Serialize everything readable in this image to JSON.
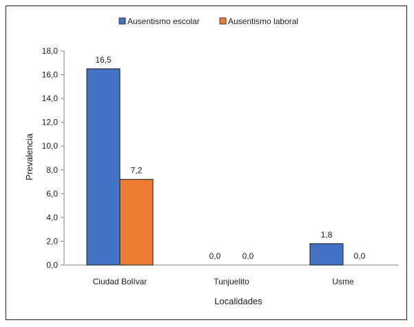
{
  "chart_data": {
    "type": "bar",
    "categories": [
      "Ciudad Bolívar",
      "Tunjuelito",
      "Usme"
    ],
    "series": [
      {
        "name": "Ausentismo escolar",
        "values": [
          16.5,
          0.0,
          1.8
        ],
        "labels": [
          "16,5",
          "0,0",
          "1,8"
        ],
        "color": "#4472C4"
      },
      {
        "name": "Ausentismo laboral",
        "values": [
          7.2,
          0.0,
          0.0
        ],
        "labels": [
          "7,2",
          "0,0",
          "0,0"
        ],
        "color": "#ED7D31"
      }
    ],
    "xlabel": "Localidades",
    "ylabel": "Prevalencia",
    "ylim": [
      0,
      18
    ],
    "yticks": [
      0,
      2,
      4,
      6,
      8,
      10,
      12,
      14,
      16,
      18
    ],
    "ytick_labels": [
      "0,0",
      "2,0",
      "4,0",
      "6,0",
      "8,0",
      "10,0",
      "12,0",
      "14,0",
      "16,0",
      "18,0"
    ],
    "grid": false,
    "legend_position": "top"
  }
}
